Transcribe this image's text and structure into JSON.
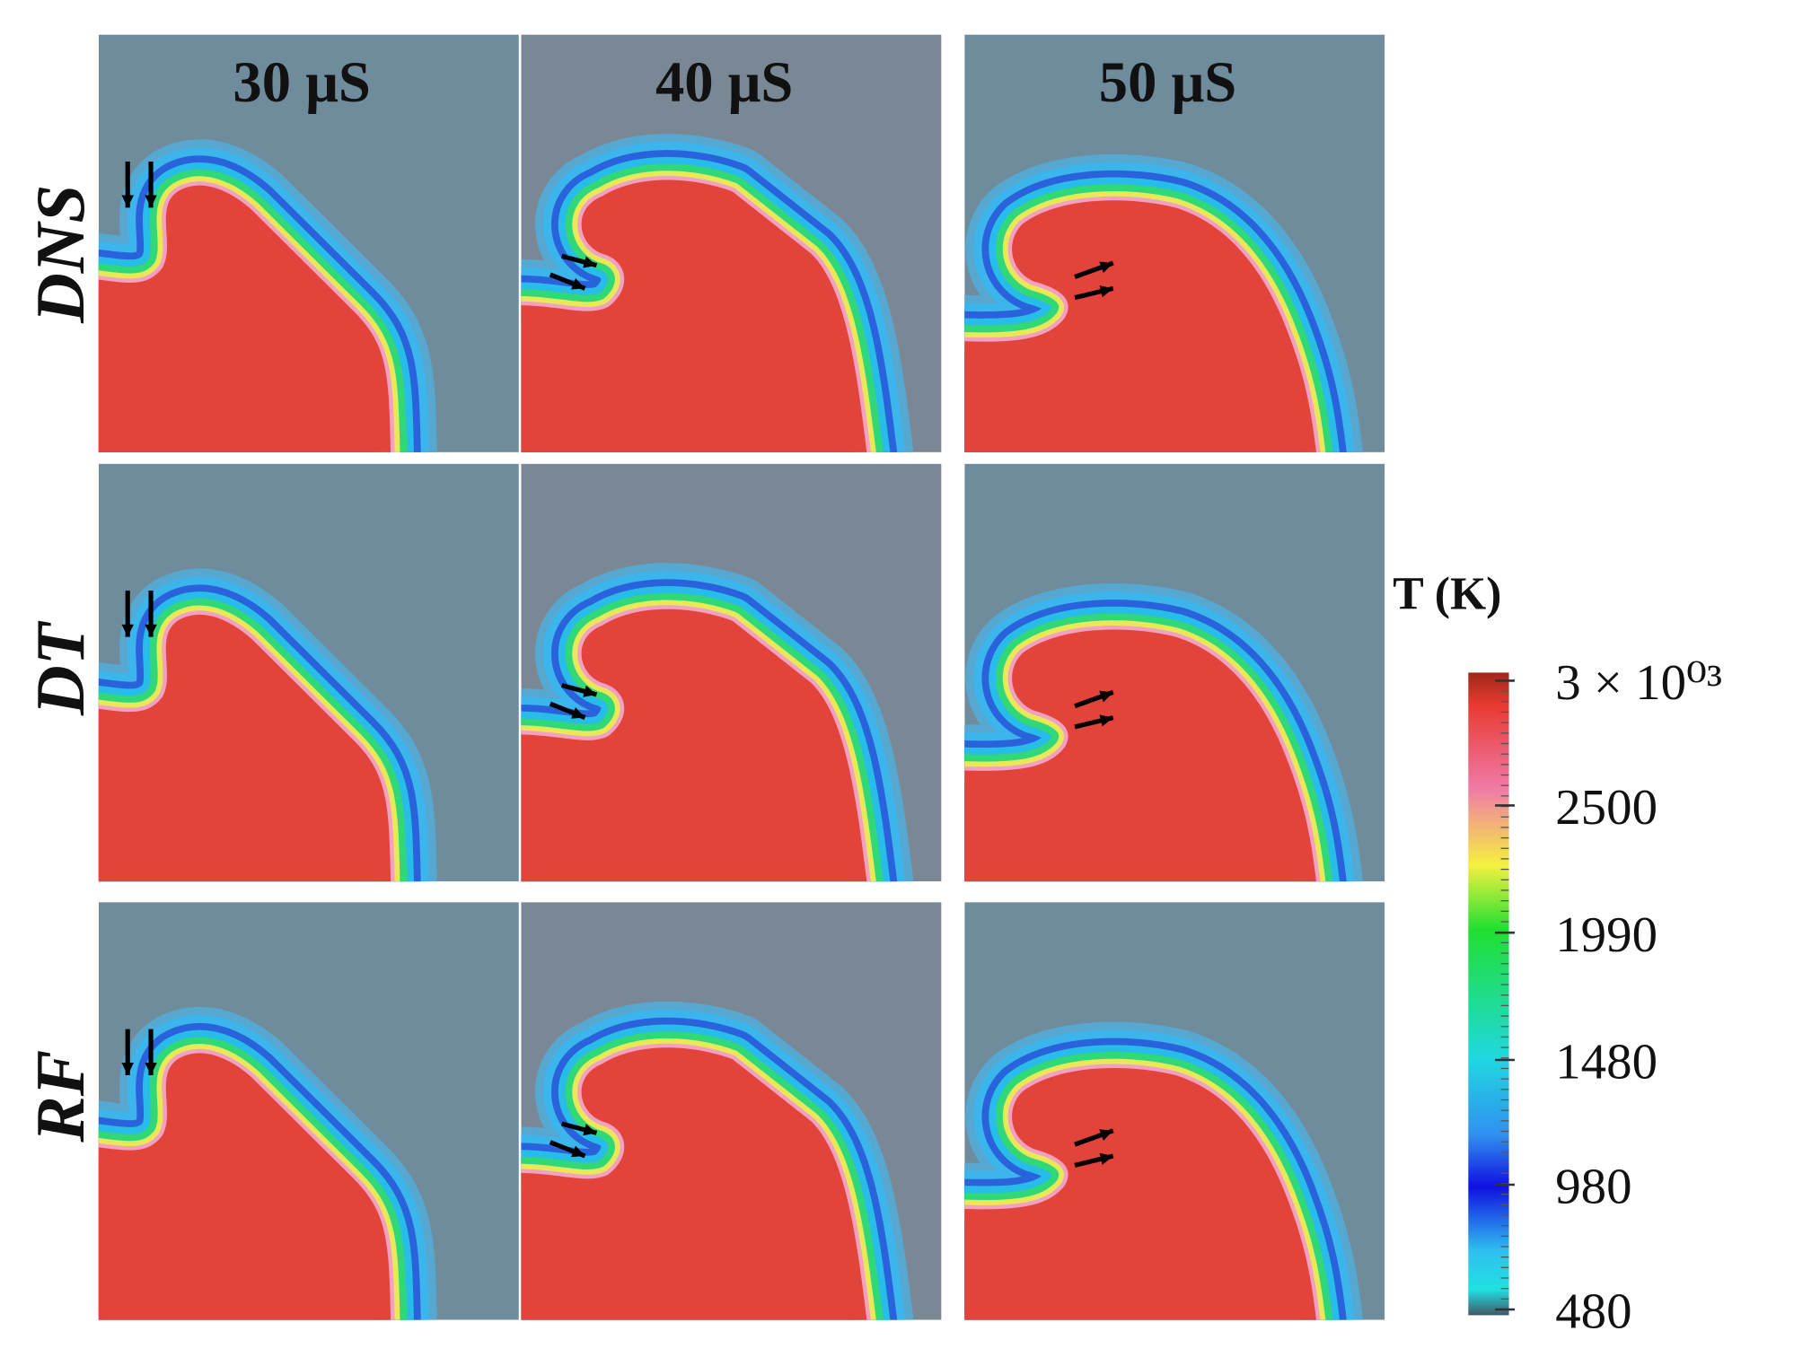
{
  "columns": [
    "30 μS",
    "40 μS",
    "50 μS"
  ],
  "rows": [
    "DNS",
    "DT",
    "RF"
  ],
  "colorbar": {
    "title": "T (K)",
    "clim": [
      480,
      3000
    ],
    "ticks": [
      {
        "value": 3000,
        "label": "3 × 10⁰³"
      },
      2500,
      1990,
      1480,
      980,
      480
    ]
  }
}
